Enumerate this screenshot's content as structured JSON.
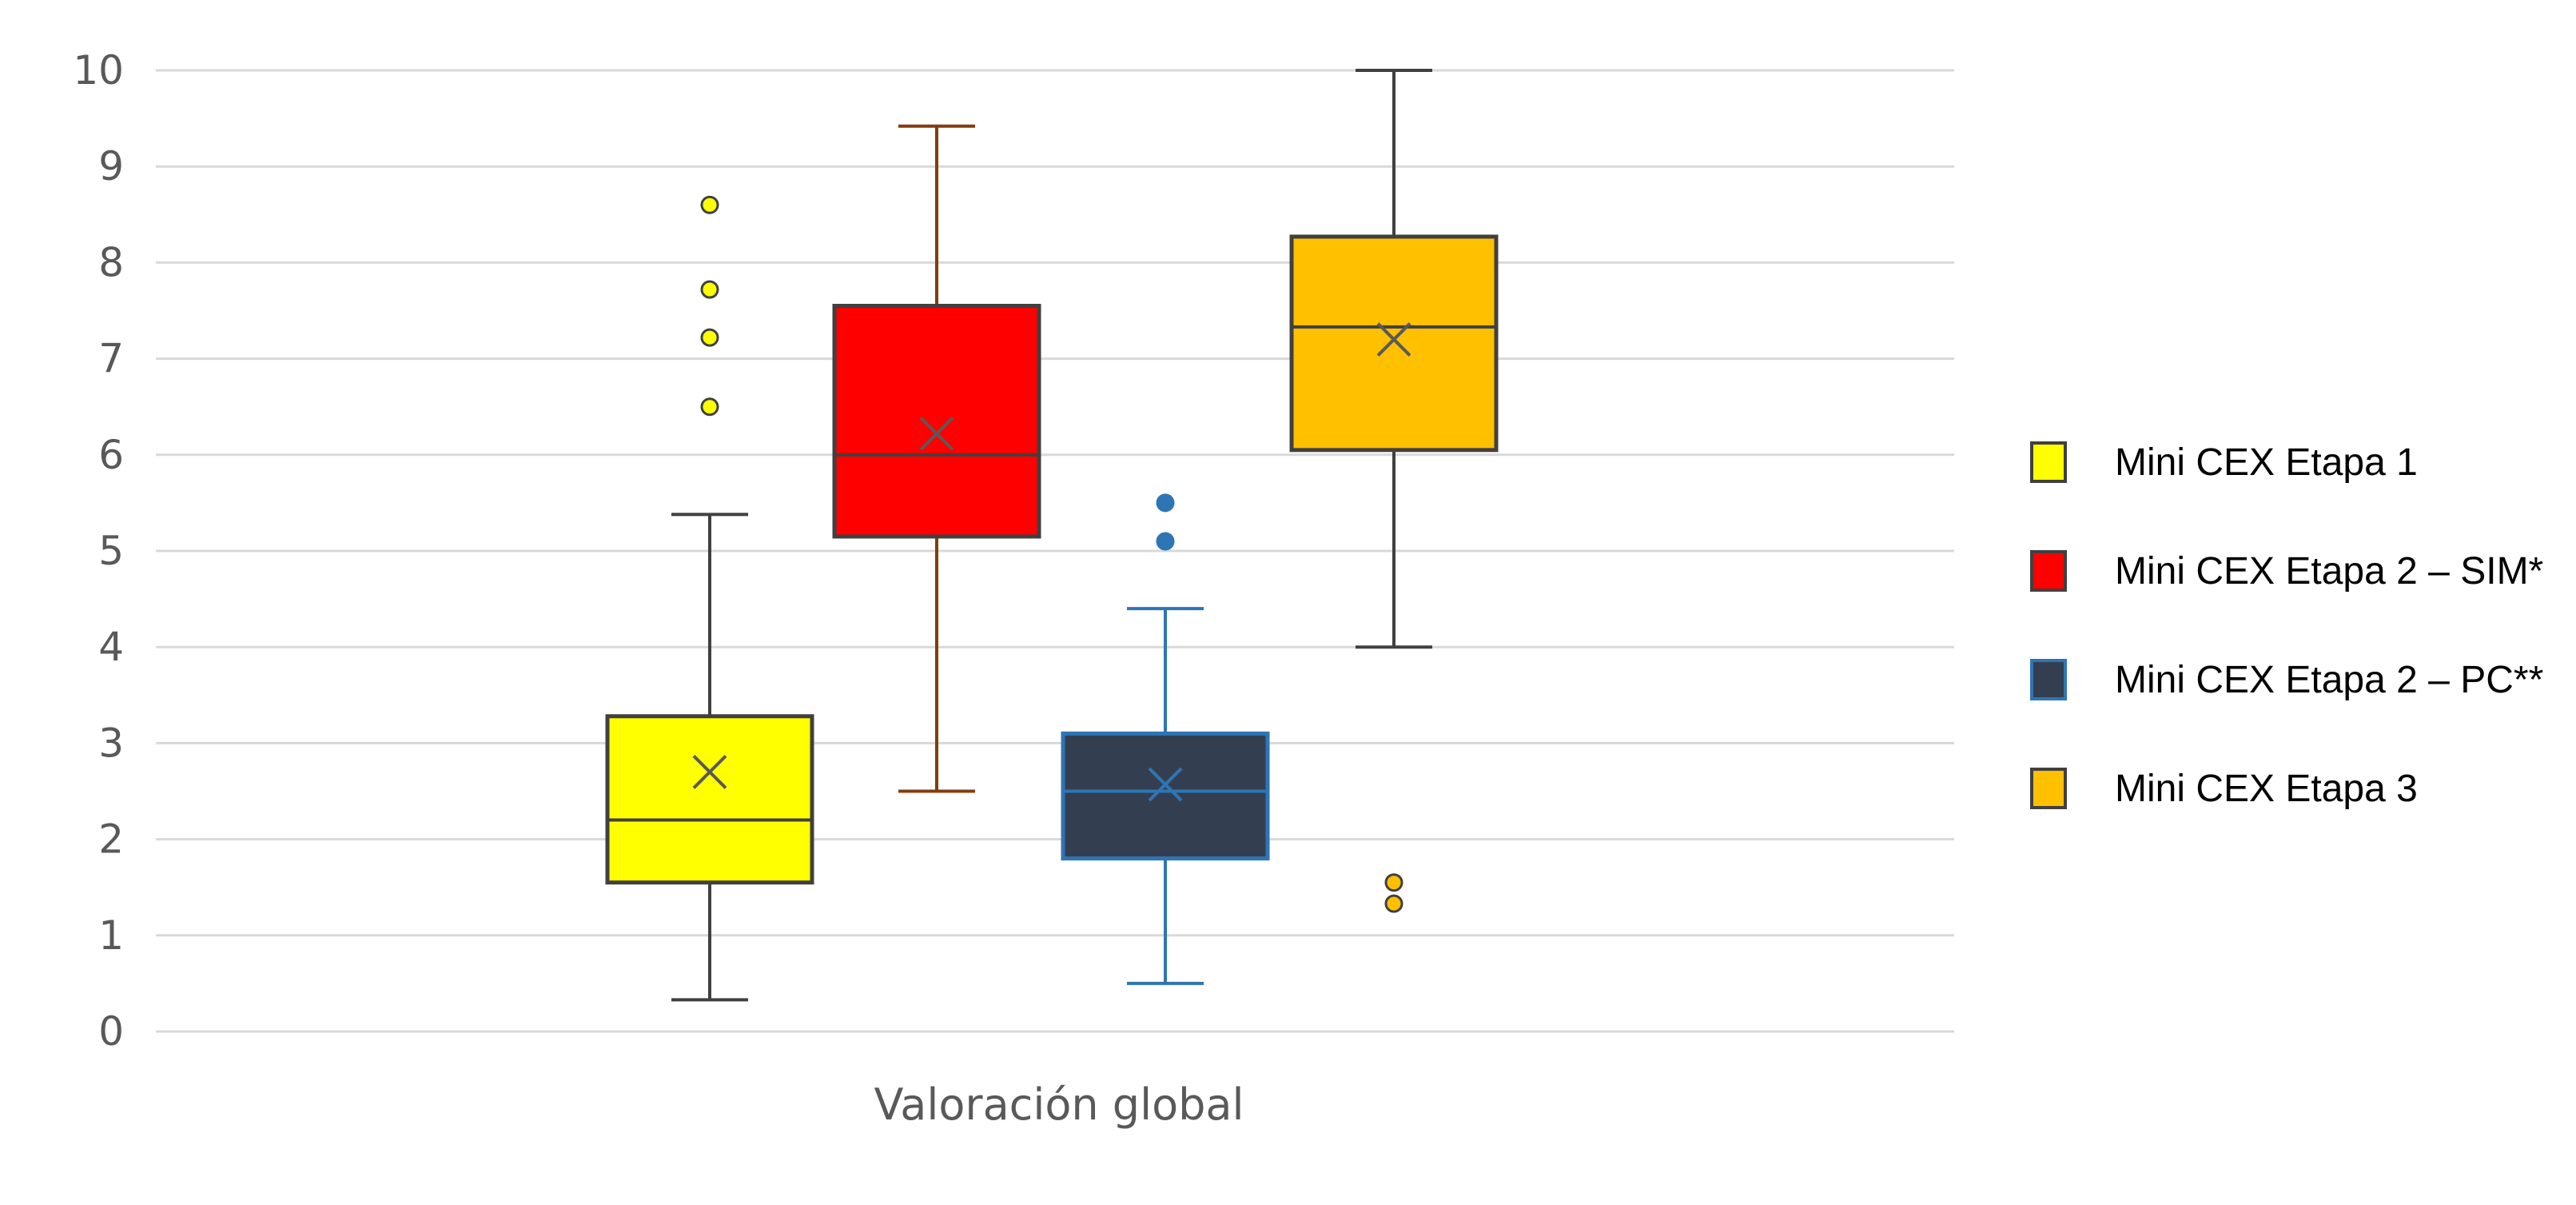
{
  "chart_data": {
    "type": "boxplot",
    "xlabel": "Valoración global",
    "ylim": [
      0,
      10
    ],
    "yticks": [
      0,
      1,
      2,
      3,
      4,
      5,
      6,
      7,
      8,
      9,
      10
    ],
    "grid": true,
    "legend_position": "right",
    "series": [
      {
        "name": "Mini CEX Etapa 1",
        "fill": "#FFFF00",
        "stroke": "#404040",
        "min": 0.33,
        "q1": 1.55,
        "median": 2.2,
        "q3": 3.28,
        "max": 5.38,
        "mean": 2.7,
        "outliers": [
          6.5,
          7.22,
          7.72,
          8.6
        ],
        "outlier_color": "#FFFF00"
      },
      {
        "name": "Mini CEX Etapa 2 – SIM*",
        "fill": "#FF0000",
        "stroke": "#404040",
        "whisker_color": "#843C0C",
        "min": 2.5,
        "q1": 5.15,
        "median": 6.0,
        "q3": 7.55,
        "max": 9.42,
        "mean": 6.22,
        "outliers": [],
        "outlier_color": "#FF0000"
      },
      {
        "name": "Mini CEX Etapa 2 – PC**",
        "fill": "#333F50",
        "stroke": "#2E75B6",
        "min": 0.5,
        "q1": 1.8,
        "median": 2.5,
        "q3": 3.1,
        "max": 4.4,
        "mean": 2.57,
        "outliers": [
          5.1,
          5.5
        ],
        "outlier_color": "#2E75B6"
      },
      {
        "name": "Mini CEX Etapa 3",
        "fill": "#FFC000",
        "stroke": "#404040",
        "min": 4.0,
        "q1": 6.05,
        "median": 7.33,
        "q3": 8.27,
        "max": 10.0,
        "mean": 7.2,
        "outliers": [
          1.33,
          1.55
        ],
        "outlier_color": "#FFC000"
      }
    ]
  }
}
